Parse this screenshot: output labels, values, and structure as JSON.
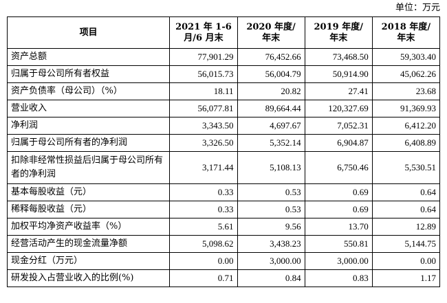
{
  "unit_label": "单位：万元",
  "header": {
    "item": "项目",
    "periods": [
      {
        "line1": "2021 年 1-6",
        "line2": "月/6 月末"
      },
      {
        "line1": "2020 年度/",
        "line2": "年末"
      },
      {
        "line1": "2019 年度/",
        "line2": "年末"
      },
      {
        "line1": "2018 年度/",
        "line2": "年末"
      }
    ]
  },
  "rows": [
    {
      "label": "资产总额",
      "values": [
        "77,901.29",
        "76,452.66",
        "73,468.50",
        "59,303.40"
      ]
    },
    {
      "label": "归属于母公司所有者权益",
      "values": [
        "56,015.73",
        "56,004.79",
        "50,914.90",
        "45,062.26"
      ]
    },
    {
      "label": "资产负债率（母公司）（%）",
      "values": [
        "18.11",
        "20.82",
        "27.41",
        "23.68"
      ]
    },
    {
      "label": "营业收入",
      "values": [
        "56,077.81",
        "89,664.44",
        "120,327.69",
        "91,369.93"
      ]
    },
    {
      "label": "净利润",
      "values": [
        "3,343.50",
        "4,697.67",
        "7,052.31",
        "6,412.20"
      ]
    },
    {
      "label": "归属于母公司所有者的净利润",
      "values": [
        "3,326.50",
        "5,352.14",
        "6,904.87",
        "6,408.89"
      ]
    },
    {
      "label": "扣除非经常性损益后归属于母公司所有者的净利润",
      "values": [
        "3,171.44",
        "5,108.13",
        "6,750.46",
        "5,530.51"
      ]
    },
    {
      "label": "基本每股收益（元）",
      "values": [
        "0.33",
        "0.53",
        "0.69",
        "0.64"
      ]
    },
    {
      "label": "稀释每股收益（元）",
      "values": [
        "0.33",
        "0.53",
        "0.69",
        "0.64"
      ]
    },
    {
      "label": "加权平均净资产收益率（%）",
      "values": [
        "5.61",
        "9.56",
        "13.70",
        "12.89"
      ]
    },
    {
      "label": "经营活动产生的现金流量净额",
      "values": [
        "5,098.62",
        "3,438.23",
        "550.81",
        "5,144.75"
      ]
    },
    {
      "label": "现金分红（万元）",
      "values": [
        "0.00",
        "3,000.00",
        "3,000.00",
        "0.00"
      ]
    },
    {
      "label": "研发投入占营业收入的比例(%)",
      "values": [
        "0.71",
        "0.84",
        "0.83",
        "1.17"
      ]
    }
  ]
}
